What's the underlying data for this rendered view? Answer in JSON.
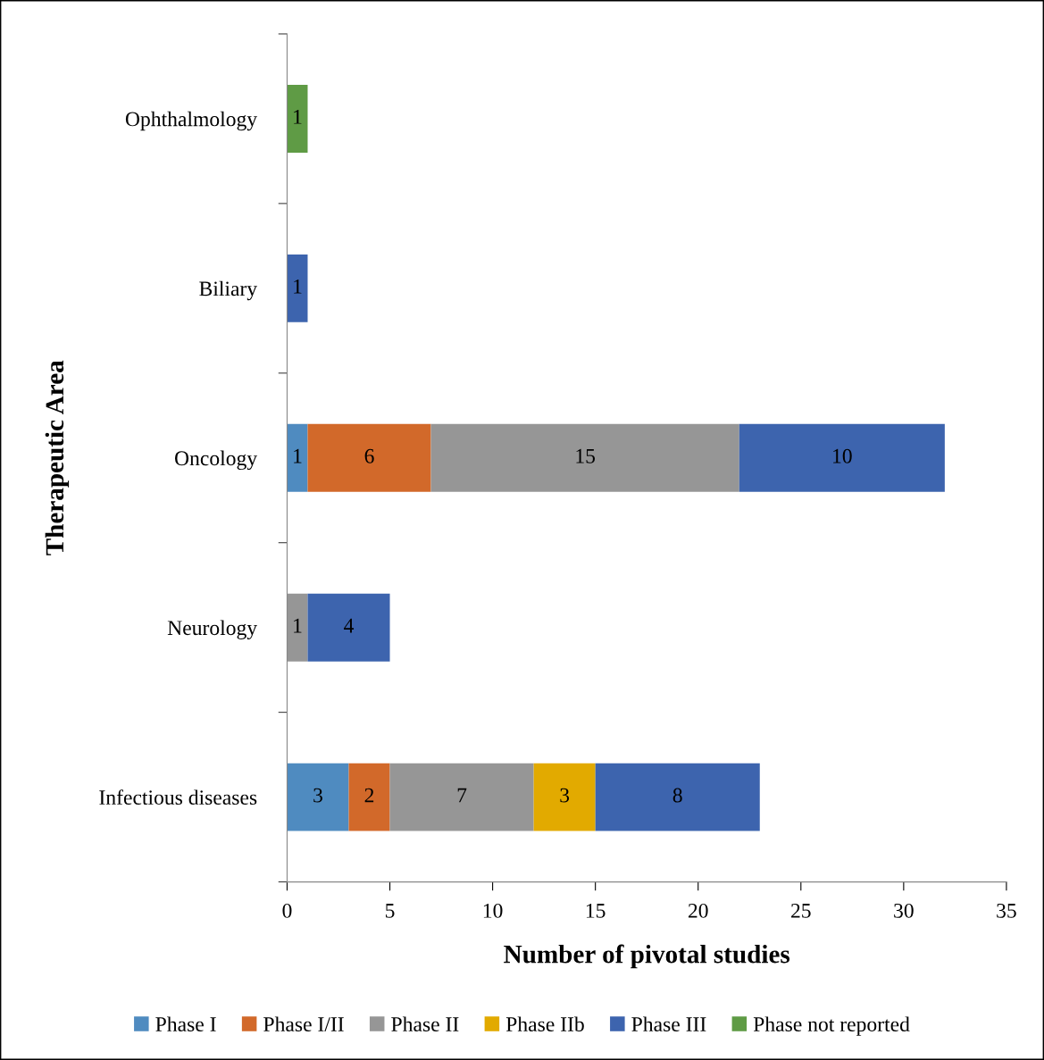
{
  "chart_data": {
    "type": "bar",
    "orientation": "horizontal",
    "stacked": true,
    "data_labels": true,
    "grid": false,
    "legend": "bottom",
    "xlabel": "Number of pivotal studies",
    "ylabel": "Therapeutic Area",
    "categories": [
      "Ophthalmology",
      "Biliary",
      "Oncology",
      "Neurology",
      "Infectious diseases"
    ],
    "xlim": [
      0,
      35
    ],
    "xticks": [
      0,
      5,
      10,
      15,
      20,
      25,
      30,
      35
    ],
    "series": [
      {
        "name": "Phase I",
        "color": "#4f8bc0",
        "values": [
          null,
          null,
          1,
          null,
          3
        ]
      },
      {
        "name": "Phase I/II",
        "color": "#d2692a",
        "values": [
          null,
          null,
          6,
          null,
          2
        ]
      },
      {
        "name": "Phase II",
        "color": "#969696",
        "values": [
          null,
          null,
          15,
          1,
          7
        ]
      },
      {
        "name": "Phase IIb",
        "color": "#e2aa00",
        "values": [
          null,
          null,
          null,
          null,
          3
        ]
      },
      {
        "name": "Phase III",
        "color": "#3d64ae",
        "values": [
          null,
          1,
          10,
          4,
          8
        ]
      },
      {
        "name": "Phase not reported",
        "color": "#5f9b45",
        "values": [
          1,
          null,
          null,
          null,
          null
        ]
      }
    ]
  }
}
